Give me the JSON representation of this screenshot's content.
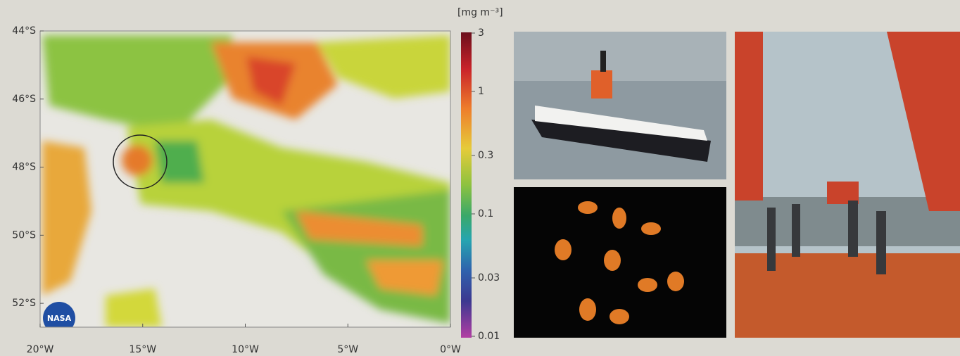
{
  "map": {
    "xlim": [
      -20,
      0
    ],
    "ylim": [
      -52.7,
      -44
    ],
    "xticks": [
      {
        "value": -20,
        "label": "20°W"
      },
      {
        "value": -15,
        "label": "15°W"
      },
      {
        "value": -10,
        "label": "10°W"
      },
      {
        "value": -5,
        "label": "5°W"
      },
      {
        "value": 0,
        "label": "0°W"
      }
    ],
    "yticks": [
      {
        "value": -44,
        "label": "44°S"
      },
      {
        "value": -46,
        "label": "46°S"
      },
      {
        "value": -48,
        "label": "48°S"
      },
      {
        "value": -50,
        "label": "50°S"
      },
      {
        "value": -52,
        "label": "52°S"
      }
    ],
    "logo_text": "NASA"
  },
  "colorbar": {
    "unit": "[mg m⁻³]",
    "log": true,
    "lim": [
      0.01,
      3
    ],
    "ticks": [
      0.01,
      0.03,
      0.1,
      0.3,
      1,
      3
    ]
  }
}
